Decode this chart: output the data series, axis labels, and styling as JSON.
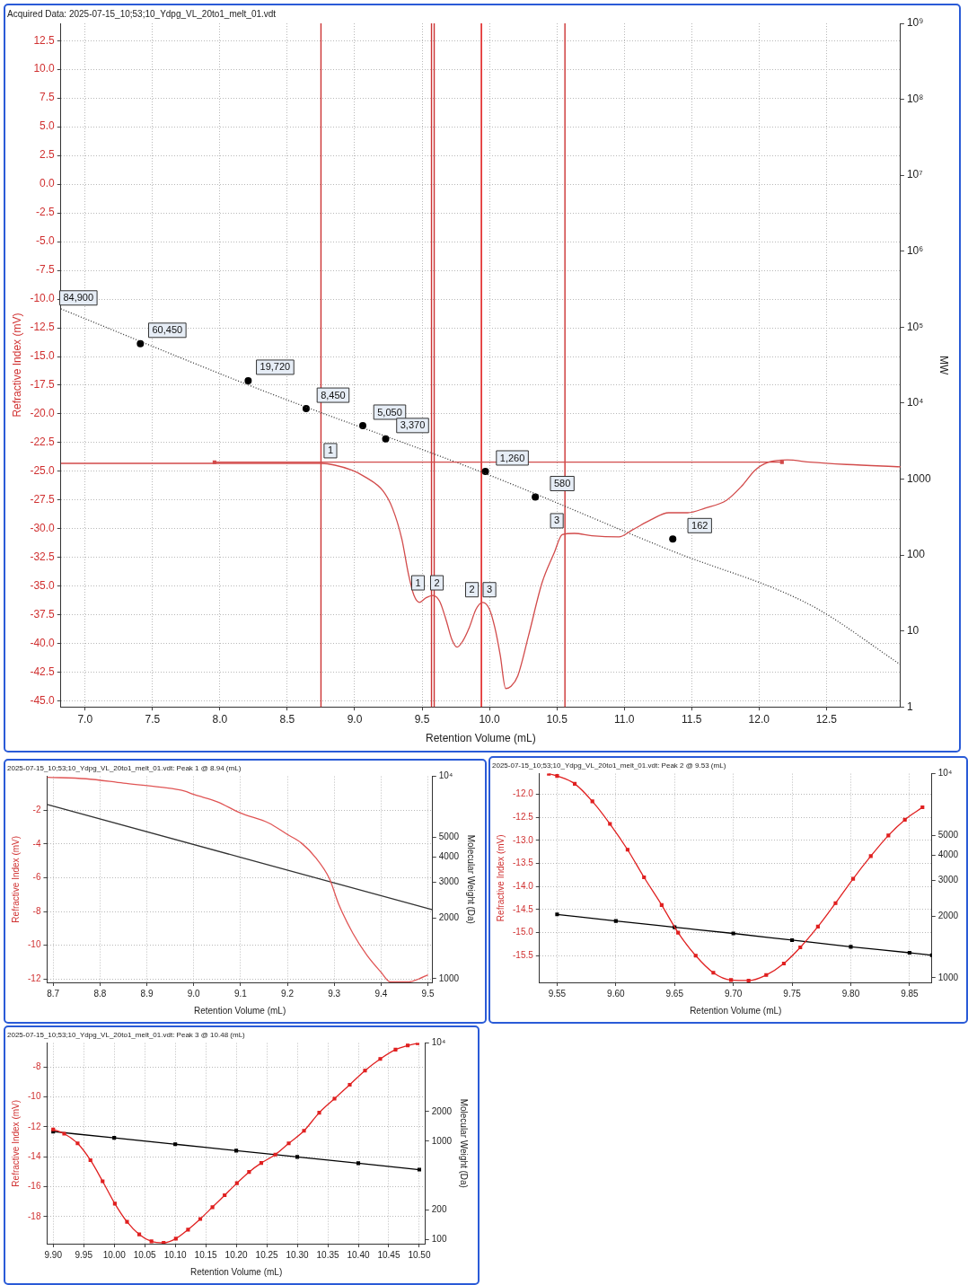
{
  "chart_data": [
    {
      "type": "line",
      "title": "Acquired Data: 2025-07-15_10;53;10_Ydpg_VL_20to1_melt_01.vdt",
      "xlabel": "Retention Volume (mL)",
      "ylabel": "Refractive Index (mV)",
      "y2label": "MW",
      "xlim": [
        6.82,
        13.05
      ],
      "xticks": [
        {
          "value": 7,
          "label": "7.0"
        },
        7.5,
        {
          "value": 8,
          "label": "8.0"
        },
        8.5,
        {
          "value": 9,
          "label": "9.0"
        },
        9.5,
        {
          "value": 10,
          "label": "10.0"
        },
        10.5,
        {
          "value": 11,
          "label": "11.0"
        },
        11.5,
        {
          "value": 12,
          "label": "12.0"
        },
        12.5
      ],
      "ylim": [
        -45.5,
        14
      ],
      "yticks": [
        12.5,
        {
          "value": 10,
          "label": "10.0"
        },
        7.5,
        {
          "value": 5,
          "label": "5.0"
        },
        2.5,
        {
          "value": 0,
          "label": "0.0"
        },
        -2.5,
        {
          "value": -5,
          "label": "-5.0"
        },
        -7.5,
        {
          "value": -10,
          "label": "-10.0"
        },
        -12.5,
        {
          "value": -15,
          "label": "-15.0"
        },
        -17.5,
        {
          "value": -20,
          "label": "-20.0"
        },
        -22.5,
        {
          "value": -25,
          "label": "-25.0"
        },
        -27.5,
        {
          "value": -30,
          "label": "-30.0"
        },
        -32.5,
        {
          "value": -35,
          "label": "-35.0"
        },
        -37.5,
        {
          "value": -40,
          "label": "-40.0"
        },
        -42.5,
        {
          "value": -45,
          "label": "-45.0"
        }
      ],
      "y2lim": [
        1,
        1000000000
      ],
      "y2ticks": [
        1,
        10,
        100,
        1000,
        {
          "value": 10000,
          "label": "10⁴"
        },
        {
          "value": 100000,
          "label": "10⁵"
        },
        {
          "value": 1000000,
          "label": "10⁶"
        },
        {
          "value": 10000000,
          "label": "10⁷"
        },
        {
          "value": 100000000,
          "label": "10⁸"
        },
        {
          "value": 1000000000,
          "label": "10⁹"
        }
      ],
      "log": "y2",
      "grid": true,
      "series": [
        {
          "type": "line",
          "axis": "y",
          "color": "#d24b4b",
          "marker": "none",
          "line_style": "solid",
          "x": [
            6.82,
            7.5,
            8.0,
            8.5,
            8.75,
            8.98,
            9.08,
            9.21,
            9.28,
            9.35,
            9.4,
            9.44,
            9.48,
            9.53,
            9.58,
            9.63,
            9.68,
            9.72,
            9.76,
            9.8,
            9.85,
            9.9,
            9.95,
            10.0,
            10.04,
            10.08,
            10.12,
            10.16,
            10.21,
            10.29,
            10.39,
            10.48,
            10.54,
            10.63,
            10.76,
            10.96,
            11.06,
            11.2,
            11.33,
            11.47,
            11.6,
            11.76,
            11.87,
            11.97,
            12.07,
            12.21,
            12.38,
            12.65,
            13.05
          ],
          "values": [
            -24.3,
            -24.3,
            -24.3,
            -24.3,
            -24.3,
            -24.9,
            -25.5,
            -26.7,
            -28.2,
            -30.9,
            -34.0,
            -35.8,
            -36.4,
            -36.0,
            -35.8,
            -36.3,
            -38.0,
            -39.6,
            -40.3,
            -39.8,
            -38.6,
            -37.0,
            -36.4,
            -37.0,
            -38.6,
            -41.0,
            -43.9,
            -43.7,
            -42.8,
            -39.3,
            -34.7,
            -32.1,
            -30.5,
            -30.4,
            -30.6,
            -30.7,
            -30.1,
            -29.2,
            -28.6,
            -28.6,
            -28.2,
            -27.5,
            -26.3,
            -24.9,
            -24.2,
            -24.0,
            -24.2,
            -24.4,
            -24.6
          ]
        },
        {
          "type": "line",
          "axis": "y",
          "color": "#d24b4b",
          "marker": "square",
          "line_style": "solid",
          "x": [
            7.96,
            12.17
          ],
          "values": [
            -24.2,
            -24.2
          ]
        },
        {
          "type": "line",
          "axis": "y2",
          "color": "#333333",
          "marker": "none",
          "line_style": "dotted",
          "x": [
            6.82,
            8.34,
            9.97,
            11.36,
            12.38,
            13.05
          ],
          "values": [
            174000,
            14100,
            1180,
            112,
            22,
            3.6
          ]
        },
        {
          "type": "scatter",
          "axis": "y2",
          "color": "#000000",
          "marker": "circle",
          "x": [
            7.41,
            8.21,
            8.64,
            9.06,
            9.23,
            9.97,
            10.34,
            11.36
          ],
          "values": [
            60450,
            19720,
            8450,
            5050,
            3370,
            1260,
            580,
            162
          ],
          "value_labels": [
            "60,450",
            "19,720",
            "8,450",
            "5,050",
            "3,370",
            "1,260",
            "580",
            "162"
          ]
        }
      ],
      "ref_lines": [
        {
          "axis": "x",
          "value": 8.75,
          "color": "#cc3333"
        },
        {
          "axis": "x",
          "value": 9.57,
          "color": "#cc3333"
        },
        {
          "axis": "x",
          "value": 9.59,
          "color": "#cc3333"
        },
        {
          "axis": "x",
          "value": 9.94,
          "color": "#dd0000"
        },
        {
          "axis": "x",
          "value": 10.56,
          "color": "#cc3333"
        }
      ],
      "annotations": [
        {
          "text": "84,900",
          "x": 6.95,
          "y": -9.9
        },
        {
          "text": "1",
          "x": 8.82,
          "y": -23.2
        },
        {
          "text": "1",
          "x": 9.47,
          "y": -34.7
        },
        {
          "text": "2",
          "x": 9.61,
          "y": -34.7
        },
        {
          "text": "2",
          "x": 9.87,
          "y": -35.3
        },
        {
          "text": "3",
          "x": 10.0,
          "y": -35.3
        },
        {
          "text": "3",
          "x": 10.5,
          "y": -29.3
        }
      ]
    },
    {
      "type": "line",
      "title": "2025-07-15_10;53;10_Ydpg_VL_20to1_melt_01.vdt: Peak 1 @ 8.94 (mL)",
      "xlabel": "Retention Volume (mL)",
      "ylabel": "Refractive Index (mV)",
      "y2label": "Molecular Weight (Da)",
      "xlim": [
        8.687,
        9.51
      ],
      "xticks": [
        8.7,
        8.8,
        8.9,
        {
          "value": 9,
          "label": "9.0"
        },
        9.1,
        9.2,
        9.3,
        9.4,
        9.5
      ],
      "ylim": [
        -12.2,
        0
      ],
      "yticks": [
        -2,
        -4,
        -6,
        -8,
        -10,
        -12
      ],
      "y2lim": [
        958,
        10000
      ],
      "y2ticks": [
        1000,
        2000,
        3000,
        4000,
        5000,
        {
          "value": 10000,
          "label": "10⁴"
        }
      ],
      "log": "y2",
      "grid": true,
      "series": [
        {
          "type": "line",
          "axis": "y",
          "color": "#e05555",
          "marker": "none",
          "line_style": "solid",
          "x": [
            8.687,
            8.77,
            8.85,
            8.93,
            8.98,
            9.0,
            9.05,
            9.1,
            9.16,
            9.2,
            9.23,
            9.26,
            9.29,
            9.31,
            9.34,
            9.37,
            9.4,
            9.42,
            9.46,
            9.48,
            9.5
          ],
          "values": [
            -0.05,
            -0.14,
            -0.4,
            -0.64,
            -0.86,
            -1.07,
            -1.5,
            -2.17,
            -2.76,
            -3.44,
            -3.95,
            -4.8,
            -6.07,
            -7.6,
            -9.3,
            -10.6,
            -11.6,
            -12.17,
            -12.17,
            -12.0,
            -11.75
          ]
        },
        {
          "type": "line",
          "axis": "y2",
          "color": "#333333",
          "marker": "none",
          "line_style": "solid",
          "x": [
            8.687,
            9.51
          ],
          "values": [
            7260,
            2190
          ]
        }
      ]
    },
    {
      "type": "line",
      "title": "2025-07-15_10;53;10_Ydpg_VL_20to1_melt_01.vdt: Peak 2 @ 9.53 (mL)",
      "xlabel": "Retention Volume (mL)",
      "ylabel": "Refractive Index (mV)",
      "xlim": [
        9.535,
        9.869
      ],
      "xticks": [
        9.55,
        {
          "value": 9.6,
          "label": "9.60"
        },
        9.65,
        {
          "value": 9.7,
          "label": "9.70"
        },
        9.75,
        {
          "value": 9.8,
          "label": "9.80"
        },
        9.85
      ],
      "ylim": [
        -16.08,
        -11.55
      ],
      "yticks": [
        {
          "value": -12,
          "label": "-12.0"
        },
        -12.5,
        {
          "value": -13,
          "label": "-13.0"
        },
        -13.5,
        {
          "value": -14,
          "label": "-14.0"
        },
        -14.5,
        {
          "value": -15,
          "label": "-15.0"
        },
        -15.5
      ],
      "y2lim": [
        950,
        10000
      ],
      "y2ticks": [
        1000,
        2000,
        3000,
        4000,
        5000,
        {
          "value": 10000,
          "label": "10⁴"
        }
      ],
      "log": "y2",
      "grid": true,
      "series": [
        {
          "type": "line",
          "axis": "y",
          "color": "#e02020",
          "marker": "square",
          "line_style": "solid",
          "x": [
            9.543,
            9.55,
            9.565,
            9.58,
            9.595,
            9.61,
            9.624,
            9.639,
            9.653,
            9.668,
            9.683,
            9.698,
            9.713,
            9.728,
            9.743,
            9.757,
            9.772,
            9.787,
            9.802,
            9.817,
            9.832,
            9.846,
            9.861
          ],
          "values": [
            -11.55,
            -11.6,
            -11.77,
            -12.15,
            -12.64,
            -13.2,
            -13.8,
            -14.4,
            -15.0,
            -15.5,
            -15.87,
            -16.03,
            -16.04,
            -15.92,
            -15.67,
            -15.32,
            -14.87,
            -14.36,
            -13.83,
            -13.34,
            -12.89,
            -12.55,
            -12.28
          ]
        },
        {
          "type": "line",
          "axis": "y2",
          "color": "#000000",
          "marker": "square",
          "line_style": "solid",
          "x": [
            9.55,
            9.6,
            9.65,
            9.7,
            9.75,
            9.8,
            9.85,
            9.869
          ],
          "values": [
            2045,
            1900,
            1770,
            1650,
            1530,
            1420,
            1327,
            1290
          ]
        }
      ]
    },
    {
      "type": "line",
      "title": "2025-07-15_10;53;10_Ydpg_VL_20to1_melt_01.vdt: Peak 3 @ 10.48 (mL)",
      "xlabel": "Retention Volume (mL)",
      "ylabel": "Refractive Index (mV)",
      "y2label": "Molecular Weight (Da)",
      "xlim": [
        9.89,
        10.51
      ],
      "xticks": [
        {
          "value": 9.9,
          "label": "9.90"
        },
        9.95,
        {
          "value": 10,
          "label": "10.00"
        },
        10.05,
        {
          "value": 10.1,
          "label": "10.10"
        },
        10.15,
        {
          "value": 10.2,
          "label": "10.20"
        },
        10.25,
        {
          "value": 10.3,
          "label": "10.30"
        },
        10.35,
        {
          "value": 10.4,
          "label": "10.40"
        },
        10.45,
        {
          "value": 10.5,
          "label": "10.50"
        }
      ],
      "ylim": [
        -19.8,
        -6.4
      ],
      "yticks": [
        -8,
        -10,
        -12,
        -14,
        -16,
        -18
      ],
      "y2lim": [
        90,
        10000
      ],
      "y2ticks": [
        100,
        200,
        1000,
        2000,
        {
          "value": 10000,
          "label": "10⁴"
        }
      ],
      "log": "y2",
      "grid": true,
      "series": [
        {
          "type": "line",
          "axis": "y",
          "color": "#e02020",
          "marker": "square",
          "line_style": "solid",
          "x": [
            9.9,
            9.918,
            9.94,
            9.961,
            9.981,
            10.001,
            10.021,
            10.041,
            10.061,
            10.081,
            10.101,
            10.121,
            10.141,
            10.161,
            10.181,
            10.201,
            10.221,
            10.241,
            10.264,
            10.286,
            10.311,
            10.336,
            10.361,
            10.386,
            10.411,
            10.436,
            10.461,
            10.481,
            10.497
          ],
          "values": [
            -12.17,
            -12.45,
            -13.1,
            -14.22,
            -15.63,
            -17.12,
            -18.34,
            -19.18,
            -19.64,
            -19.74,
            -19.46,
            -18.86,
            -18.15,
            -17.36,
            -16.56,
            -15.76,
            -15.01,
            -14.41,
            -13.85,
            -13.1,
            -12.26,
            -11.05,
            -10.11,
            -9.18,
            -8.24,
            -7.46,
            -6.84,
            -6.56,
            -6.41
          ]
        },
        {
          "type": "line",
          "axis": "y2",
          "color": "#000000",
          "marker": "square",
          "line_style": "solid",
          "x": [
            9.9,
            10.0,
            10.1,
            10.2,
            10.3,
            10.4,
            10.5
          ],
          "values": [
            1250,
            1080,
            930,
            800,
            690,
            595,
            512
          ]
        }
      ]
    }
  ]
}
